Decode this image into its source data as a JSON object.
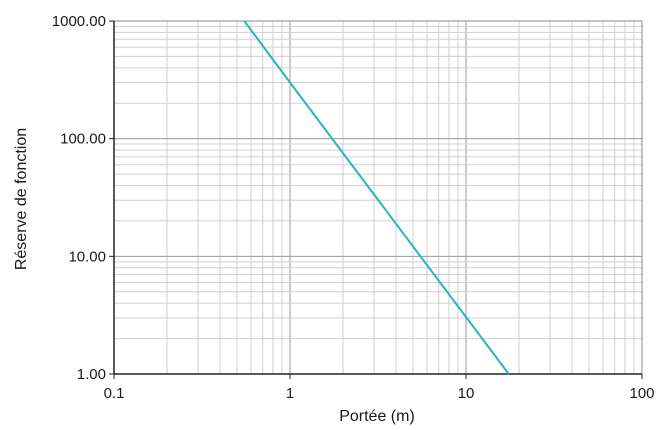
{
  "chart_data": {
    "type": "line",
    "xlabel": "Portée (m)",
    "ylabel": "Réserve de fonction",
    "x_scale": "log",
    "y_scale": "log",
    "xlim": [
      0.1,
      100
    ],
    "ylim": [
      1,
      1000
    ],
    "x_ticks": [
      "0.1",
      "1",
      "10",
      "100"
    ],
    "y_ticks": [
      "1.00",
      "10.00",
      "100.00",
      "1000.00"
    ],
    "grid": true,
    "series": [
      {
        "color": "#27b4c4",
        "points": [
          [
            0.55,
            1000
          ],
          [
            1,
            300
          ],
          [
            17.5,
            1
          ]
        ]
      }
    ]
  }
}
